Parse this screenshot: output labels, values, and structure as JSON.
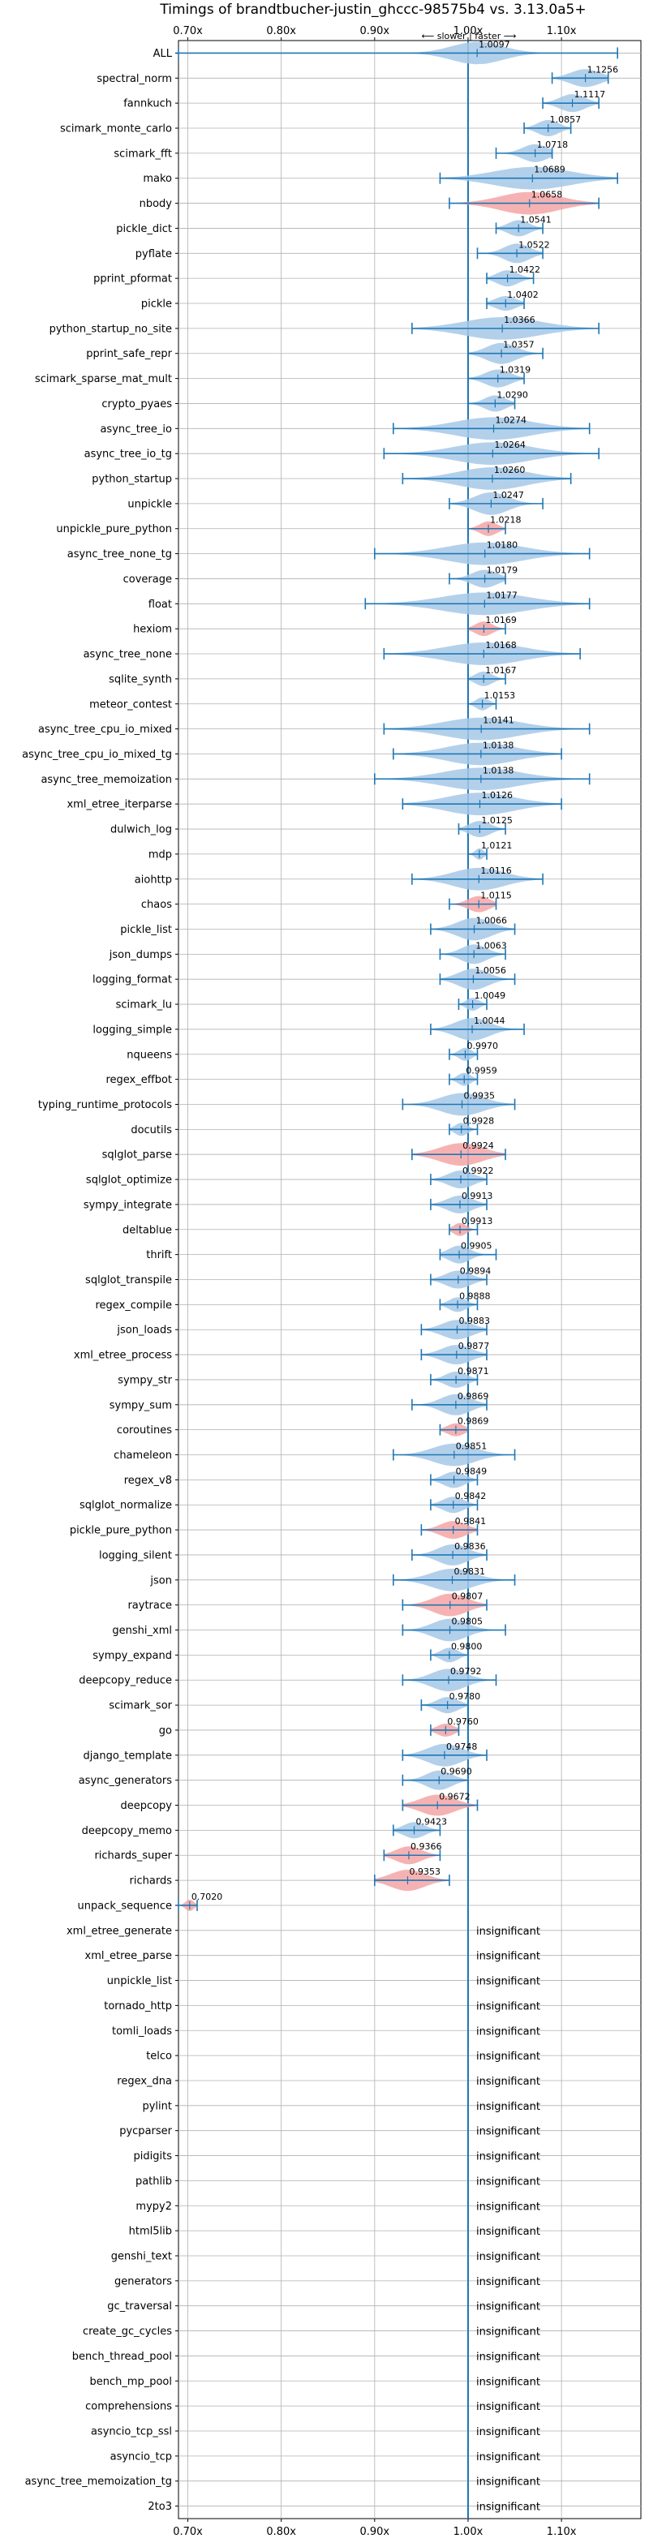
{
  "chart_data": {
    "type": "violin",
    "title": "Timings of brandtbucher-justin_ghccc-98575b4 vs. 3.13.0a5+",
    "direction_note": "⟵ slower | faster ⟶",
    "x_ticks": [
      "0.70x",
      "0.80x",
      "0.90x",
      "1.00x",
      "1.10x"
    ],
    "x_tick_values": [
      0.7,
      0.8,
      0.9,
      1.0,
      1.1
    ],
    "xlim": [
      0.69,
      1.185
    ],
    "reference_line": 1.0,
    "grid": true,
    "colors": {
      "faster": "#a6c8e8",
      "slower": "#f4a5a5",
      "line": "#1f77b4",
      "grid": "#b0b0b0",
      "ref": "#1f77b4"
    },
    "insignificant_label": "insignificant",
    "benchmarks": [
      {
        "name": "ALL",
        "value": 1.0097,
        "label": "1.0097",
        "lo": 0.69,
        "hi": 1.16,
        "w": 0.06,
        "slow": false
      },
      {
        "name": "spectral_norm",
        "value": 1.1256,
        "label": "1.1256",
        "lo": 1.09,
        "hi": 1.15,
        "w": 0.035,
        "slow": false
      },
      {
        "name": "fannkuch",
        "value": 1.1117,
        "label": "1.1117",
        "lo": 1.08,
        "hi": 1.14,
        "w": 0.03,
        "slow": false
      },
      {
        "name": "scimark_monte_carlo",
        "value": 1.0857,
        "label": "1.0857",
        "lo": 1.06,
        "hi": 1.11,
        "w": 0.025,
        "slow": false
      },
      {
        "name": "scimark_fft",
        "value": 1.0718,
        "label": "1.0718",
        "lo": 1.03,
        "hi": 1.09,
        "w": 0.03,
        "slow": false
      },
      {
        "name": "mako",
        "value": 1.0689,
        "label": "1.0689",
        "lo": 0.97,
        "hi": 1.16,
        "w": 0.09,
        "slow": false
      },
      {
        "name": "nbody",
        "value": 1.0658,
        "label": "1.0658",
        "lo": 0.98,
        "hi": 1.14,
        "w": 0.07,
        "slow": true
      },
      {
        "name": "pickle_dict",
        "value": 1.0541,
        "label": "1.0541",
        "lo": 1.03,
        "hi": 1.08,
        "w": 0.025,
        "slow": false
      },
      {
        "name": "pyflate",
        "value": 1.0522,
        "label": "1.0522",
        "lo": 1.01,
        "hi": 1.08,
        "w": 0.03,
        "slow": false
      },
      {
        "name": "pprint_pformat",
        "value": 1.0422,
        "label": "1.0422",
        "lo": 1.02,
        "hi": 1.07,
        "w": 0.025,
        "slow": false
      },
      {
        "name": "pickle",
        "value": 1.0402,
        "label": "1.0402",
        "lo": 1.02,
        "hi": 1.06,
        "w": 0.025,
        "slow": false
      },
      {
        "name": "python_startup_no_site",
        "value": 1.0366,
        "label": "1.0366",
        "lo": 0.94,
        "hi": 1.14,
        "w": 0.09,
        "slow": false
      },
      {
        "name": "pprint_safe_repr",
        "value": 1.0357,
        "label": "1.0357",
        "lo": 1.0,
        "hi": 1.08,
        "w": 0.035,
        "slow": false
      },
      {
        "name": "scimark_sparse_mat_mult",
        "value": 1.0319,
        "label": "1.0319",
        "lo": 1.0,
        "hi": 1.06,
        "w": 0.03,
        "slow": false
      },
      {
        "name": "crypto_pyaes",
        "value": 1.029,
        "label": "1.0290",
        "lo": 1.0,
        "hi": 1.05,
        "w": 0.025,
        "slow": false
      },
      {
        "name": "async_tree_io",
        "value": 1.0274,
        "label": "1.0274",
        "lo": 0.92,
        "hi": 1.13,
        "w": 0.09,
        "slow": false
      },
      {
        "name": "async_tree_io_tg",
        "value": 1.0264,
        "label": "1.0264",
        "lo": 0.91,
        "hi": 1.14,
        "w": 0.09,
        "slow": false
      },
      {
        "name": "python_startup",
        "value": 1.026,
        "label": "1.0260",
        "lo": 0.93,
        "hi": 1.11,
        "w": 0.08,
        "slow": false
      },
      {
        "name": "unpickle",
        "value": 1.0247,
        "label": "1.0247",
        "lo": 0.98,
        "hi": 1.08,
        "w": 0.04,
        "slow": false
      },
      {
        "name": "unpickle_pure_python",
        "value": 1.0218,
        "label": "1.0218",
        "lo": 1.0,
        "hi": 1.04,
        "w": 0.02,
        "slow": true
      },
      {
        "name": "async_tree_none_tg",
        "value": 1.018,
        "label": "1.0180",
        "lo": 0.9,
        "hi": 1.13,
        "w": 0.09,
        "slow": false
      },
      {
        "name": "coverage",
        "value": 1.0179,
        "label": "1.0179",
        "lo": 0.98,
        "hi": 1.04,
        "w": 0.03,
        "slow": false
      },
      {
        "name": "float",
        "value": 1.0177,
        "label": "1.0177",
        "lo": 0.89,
        "hi": 1.13,
        "w": 0.1,
        "slow": false
      },
      {
        "name": "hexiom",
        "value": 1.0169,
        "label": "1.0169",
        "lo": 1.0,
        "hi": 1.04,
        "w": 0.02,
        "slow": true
      },
      {
        "name": "async_tree_none",
        "value": 1.0168,
        "label": "1.0168",
        "lo": 0.91,
        "hi": 1.12,
        "w": 0.09,
        "slow": false
      },
      {
        "name": "sqlite_synth",
        "value": 1.0167,
        "label": "1.0167",
        "lo": 1.0,
        "hi": 1.04,
        "w": 0.02,
        "slow": false
      },
      {
        "name": "meteor_contest",
        "value": 1.0153,
        "label": "1.0153",
        "lo": 1.0,
        "hi": 1.03,
        "w": 0.015,
        "slow": false
      },
      {
        "name": "async_tree_cpu_io_mixed",
        "value": 1.0141,
        "label": "1.0141",
        "lo": 0.91,
        "hi": 1.13,
        "w": 0.09,
        "slow": false
      },
      {
        "name": "async_tree_cpu_io_mixed_tg",
        "value": 1.0138,
        "label": "1.0138",
        "lo": 0.92,
        "hi": 1.1,
        "w": 0.08,
        "slow": false
      },
      {
        "name": "async_tree_memoization",
        "value": 1.0138,
        "label": "1.0138",
        "lo": 0.9,
        "hi": 1.13,
        "w": 0.09,
        "slow": false
      },
      {
        "name": "xml_etree_iterparse",
        "value": 1.0126,
        "label": "1.0126",
        "lo": 0.93,
        "hi": 1.1,
        "w": 0.08,
        "slow": false
      },
      {
        "name": "dulwich_log",
        "value": 1.0125,
        "label": "1.0125",
        "lo": 0.99,
        "hi": 1.04,
        "w": 0.025,
        "slow": false
      },
      {
        "name": "mdp",
        "value": 1.0121,
        "label": "1.0121",
        "lo": 1.0,
        "hi": 1.02,
        "w": 0.01,
        "slow": false
      },
      {
        "name": "aiohttp",
        "value": 1.0116,
        "label": "1.0116",
        "lo": 0.94,
        "hi": 1.08,
        "w": 0.06,
        "slow": false
      },
      {
        "name": "chaos",
        "value": 1.0115,
        "label": "1.0115",
        "lo": 0.98,
        "hi": 1.03,
        "w": 0.025,
        "slow": true
      },
      {
        "name": "pickle_list",
        "value": 1.0066,
        "label": "1.0066",
        "lo": 0.96,
        "hi": 1.05,
        "w": 0.04,
        "slow": false
      },
      {
        "name": "json_dumps",
        "value": 1.0063,
        "label": "1.0063",
        "lo": 0.97,
        "hi": 1.04,
        "w": 0.03,
        "slow": false
      },
      {
        "name": "logging_format",
        "value": 1.0056,
        "label": "1.0056",
        "lo": 0.97,
        "hi": 1.05,
        "w": 0.035,
        "slow": false
      },
      {
        "name": "scimark_lu",
        "value": 1.0049,
        "label": "1.0049",
        "lo": 0.99,
        "hi": 1.02,
        "w": 0.015,
        "slow": false
      },
      {
        "name": "logging_simple",
        "value": 1.0044,
        "label": "1.0044",
        "lo": 0.96,
        "hi": 1.06,
        "w": 0.04,
        "slow": false
      },
      {
        "name": "nqueens",
        "value": 0.997,
        "label": "0.9970",
        "lo": 0.98,
        "hi": 1.01,
        "w": 0.015,
        "slow": false
      },
      {
        "name": "regex_effbot",
        "value": 0.9959,
        "label": "0.9959",
        "lo": 0.98,
        "hi": 1.01,
        "w": 0.015,
        "slow": false
      },
      {
        "name": "typing_runtime_protocols",
        "value": 0.9935,
        "label": "0.9935",
        "lo": 0.93,
        "hi": 1.05,
        "w": 0.05,
        "slow": false
      },
      {
        "name": "docutils",
        "value": 0.9928,
        "label": "0.9928",
        "lo": 0.98,
        "hi": 1.01,
        "w": 0.015,
        "slow": false
      },
      {
        "name": "sqlglot_parse",
        "value": 0.9924,
        "label": "0.9924",
        "lo": 0.94,
        "hi": 1.04,
        "w": 0.05,
        "slow": true
      },
      {
        "name": "sqlglot_optimize",
        "value": 0.9922,
        "label": "0.9922",
        "lo": 0.96,
        "hi": 1.02,
        "w": 0.03,
        "slow": false
      },
      {
        "name": "sympy_integrate",
        "value": 0.9913,
        "label": "0.9913",
        "lo": 0.96,
        "hi": 1.02,
        "w": 0.03,
        "slow": false
      },
      {
        "name": "deltablue",
        "value": 0.9913,
        "label": "0.9913",
        "lo": 0.98,
        "hi": 1.01,
        "w": 0.015,
        "slow": true
      },
      {
        "name": "thrift",
        "value": 0.9905,
        "label": "0.9905",
        "lo": 0.97,
        "hi": 1.03,
        "w": 0.025,
        "slow": false
      },
      {
        "name": "sqlglot_transpile",
        "value": 0.9894,
        "label": "0.9894",
        "lo": 0.96,
        "hi": 1.02,
        "w": 0.03,
        "slow": false
      },
      {
        "name": "regex_compile",
        "value": 0.9888,
        "label": "0.9888",
        "lo": 0.97,
        "hi": 1.01,
        "w": 0.02,
        "slow": false
      },
      {
        "name": "json_loads",
        "value": 0.9883,
        "label": "0.9883",
        "lo": 0.95,
        "hi": 1.02,
        "w": 0.035,
        "slow": false
      },
      {
        "name": "xml_etree_process",
        "value": 0.9877,
        "label": "0.9877",
        "lo": 0.95,
        "hi": 1.02,
        "w": 0.035,
        "slow": false
      },
      {
        "name": "sympy_str",
        "value": 0.9871,
        "label": "0.9871",
        "lo": 0.96,
        "hi": 1.01,
        "w": 0.025,
        "slow": false
      },
      {
        "name": "sympy_sum",
        "value": 0.9869,
        "label": "0.9869",
        "lo": 0.94,
        "hi": 1.02,
        "w": 0.035,
        "slow": false
      },
      {
        "name": "coroutines",
        "value": 0.9869,
        "label": "0.9869",
        "lo": 0.97,
        "hi": 1.0,
        "w": 0.02,
        "slow": true
      },
      {
        "name": "chameleon",
        "value": 0.9851,
        "label": "0.9851",
        "lo": 0.92,
        "hi": 1.05,
        "w": 0.05,
        "slow": false
      },
      {
        "name": "regex_v8",
        "value": 0.9849,
        "label": "0.9849",
        "lo": 0.96,
        "hi": 1.01,
        "w": 0.025,
        "slow": false
      },
      {
        "name": "sqlglot_normalize",
        "value": 0.9842,
        "label": "0.9842",
        "lo": 0.96,
        "hi": 1.01,
        "w": 0.025,
        "slow": false
      },
      {
        "name": "pickle_pure_python",
        "value": 0.9841,
        "label": "0.9841",
        "lo": 0.95,
        "hi": 1.01,
        "w": 0.03,
        "slow": true
      },
      {
        "name": "logging_silent",
        "value": 0.9836,
        "label": "0.9836",
        "lo": 0.94,
        "hi": 1.02,
        "w": 0.035,
        "slow": false
      },
      {
        "name": "json",
        "value": 0.9831,
        "label": "0.9831",
        "lo": 0.92,
        "hi": 1.05,
        "w": 0.05,
        "slow": false
      },
      {
        "name": "raytrace",
        "value": 0.9807,
        "label": "0.9807",
        "lo": 0.93,
        "hi": 1.02,
        "w": 0.04,
        "slow": true
      },
      {
        "name": "genshi_xml",
        "value": 0.9805,
        "label": "0.9805",
        "lo": 0.93,
        "hi": 1.04,
        "w": 0.04,
        "slow": false
      },
      {
        "name": "sympy_expand",
        "value": 0.98,
        "label": "0.9800",
        "lo": 0.96,
        "hi": 1.0,
        "w": 0.02,
        "slow": false
      },
      {
        "name": "deepcopy_reduce",
        "value": 0.9792,
        "label": "0.9792",
        "lo": 0.93,
        "hi": 1.03,
        "w": 0.04,
        "slow": false
      },
      {
        "name": "scimark_sor",
        "value": 0.978,
        "label": "0.9780",
        "lo": 0.95,
        "hi": 1.0,
        "w": 0.025,
        "slow": false
      },
      {
        "name": "go",
        "value": 0.976,
        "label": "0.9760",
        "lo": 0.96,
        "hi": 0.99,
        "w": 0.02,
        "slow": true
      },
      {
        "name": "django_template",
        "value": 0.9748,
        "label": "0.9748",
        "lo": 0.93,
        "hi": 1.02,
        "w": 0.04,
        "slow": false
      },
      {
        "name": "async_generators",
        "value": 0.969,
        "label": "0.9690",
        "lo": 0.93,
        "hi": 1.0,
        "w": 0.03,
        "slow": false
      },
      {
        "name": "deepcopy",
        "value": 0.9672,
        "label": "0.9672",
        "lo": 0.93,
        "hi": 1.01,
        "w": 0.04,
        "slow": true
      },
      {
        "name": "deepcopy_memo",
        "value": 0.9423,
        "label": "0.9423",
        "lo": 0.92,
        "hi": 0.97,
        "w": 0.025,
        "slow": false
      },
      {
        "name": "richards_super",
        "value": 0.9366,
        "label": "0.9366",
        "lo": 0.91,
        "hi": 0.97,
        "w": 0.03,
        "slow": true
      },
      {
        "name": "richards",
        "value": 0.9353,
        "label": "0.9353",
        "lo": 0.9,
        "hi": 0.98,
        "w": 0.04,
        "slow": true
      },
      {
        "name": "unpack_sequence",
        "value": 0.702,
        "label": "0.7020",
        "lo": 0.69,
        "hi": 0.71,
        "w": 0.01,
        "slow": true
      },
      {
        "name": "xml_etree_generate",
        "insignificant": true
      },
      {
        "name": "xml_etree_parse",
        "insignificant": true
      },
      {
        "name": "unpickle_list",
        "insignificant": true
      },
      {
        "name": "tornado_http",
        "insignificant": true
      },
      {
        "name": "tomli_loads",
        "insignificant": true
      },
      {
        "name": "telco",
        "insignificant": true
      },
      {
        "name": "regex_dna",
        "insignificant": true
      },
      {
        "name": "pylint",
        "insignificant": true
      },
      {
        "name": "pycparser",
        "insignificant": true
      },
      {
        "name": "pidigits",
        "insignificant": true
      },
      {
        "name": "pathlib",
        "insignificant": true
      },
      {
        "name": "mypy2",
        "insignificant": true
      },
      {
        "name": "html5lib",
        "insignificant": true
      },
      {
        "name": "genshi_text",
        "insignificant": true
      },
      {
        "name": "generators",
        "insignificant": true
      },
      {
        "name": "gc_traversal",
        "insignificant": true
      },
      {
        "name": "create_gc_cycles",
        "insignificant": true
      },
      {
        "name": "bench_thread_pool",
        "insignificant": true
      },
      {
        "name": "bench_mp_pool",
        "insignificant": true
      },
      {
        "name": "comprehensions",
        "insignificant": true
      },
      {
        "name": "asyncio_tcp_ssl",
        "insignificant": true
      },
      {
        "name": "asyncio_tcp",
        "insignificant": true
      },
      {
        "name": "async_tree_memoization_tg",
        "insignificant": true
      },
      {
        "name": "2to3",
        "insignificant": true
      }
    ]
  }
}
